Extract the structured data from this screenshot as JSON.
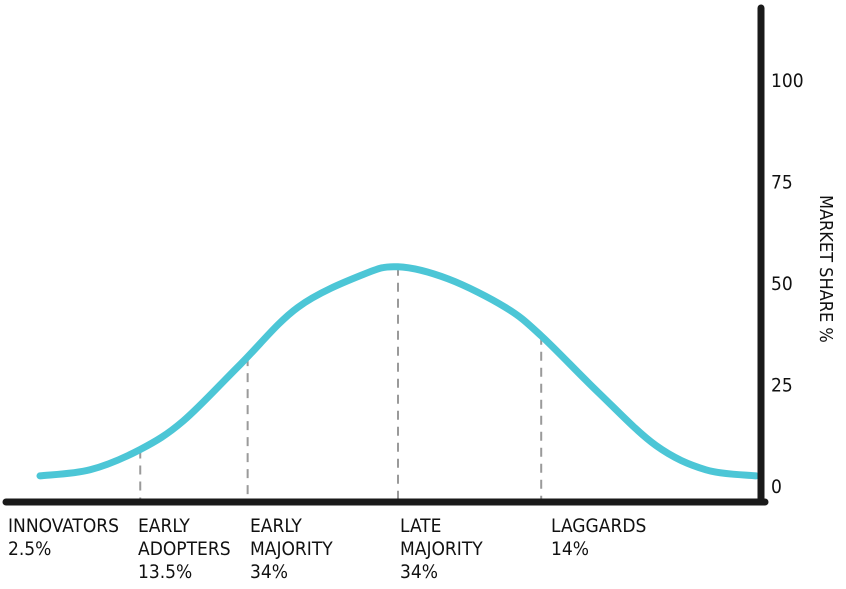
{
  "chart_data": {
    "type": "line",
    "title": "",
    "xlabel": "",
    "ylabel": "MARKET SHARE %",
    "ylim": [
      0,
      100
    ],
    "y_ticks": [
      "0",
      "25",
      "50",
      "75",
      "100"
    ],
    "grid": false,
    "curve_color": "#4cc6d6",
    "axis_color": "#1a1a1a",
    "divider_color": "#9a9a9a",
    "series": [
      {
        "values": [
          {
            "x": 0.0,
            "y": 2.5
          },
          {
            "x": 0.07,
            "y": 4
          },
          {
            "x": 0.14,
            "y": 9
          },
          {
            "x": 0.2,
            "y": 16
          },
          {
            "x": 0.28,
            "y": 30
          },
          {
            "x": 0.36,
            "y": 44
          },
          {
            "x": 0.45,
            "y": 52
          },
          {
            "x": 0.5,
            "y": 54
          },
          {
            "x": 0.57,
            "y": 51
          },
          {
            "x": 0.65,
            "y": 44
          },
          {
            "x": 0.7,
            "y": 37
          },
          {
            "x": 0.78,
            "y": 23
          },
          {
            "x": 0.86,
            "y": 10
          },
          {
            "x": 0.93,
            "y": 4
          },
          {
            "x": 1.0,
            "y": 2.5
          }
        ]
      }
    ],
    "segments": [
      {
        "line1": "INNOVATORS",
        "line2": "2.5%",
        "line3": ""
      },
      {
        "line1": "EARLY",
        "line2": "ADOPTERS",
        "line3": "13.5%"
      },
      {
        "line1": "EARLY",
        "line2": "MAJORITY",
        "line3": "34%"
      },
      {
        "line1": "LATE",
        "line2": "MAJORITY",
        "line3": "34%"
      },
      {
        "line1": "LAGGARDS",
        "line2": "14%",
        "line3": ""
      }
    ],
    "dividers_x": [
      0.14,
      0.29,
      0.5,
      0.7
    ]
  }
}
